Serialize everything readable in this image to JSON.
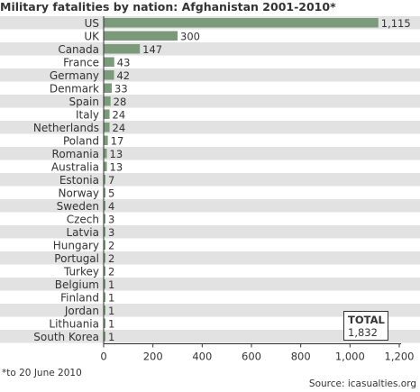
{
  "title": "Military fatalities by nation: Afghanistan 2001-2010*",
  "footnote": "*to 20 June 2010",
  "source": "Source: icasualties.org",
  "total": {
    "label": "TOTAL",
    "value": "1,832"
  },
  "colors": {
    "bar": "#7a9a7a",
    "stripe": "#e2e2e2",
    "axis": "#333333"
  },
  "chart_data": {
    "type": "bar",
    "orientation": "horizontal",
    "categories": [
      "US",
      "UK",
      "Canada",
      "France",
      "Germany",
      "Denmark",
      "Spain",
      "Italy",
      "Netherlands",
      "Poland",
      "Romania",
      "Australia",
      "Estonia",
      "Norway",
      "Sweden",
      "Czech",
      "Latvia",
      "Hungary",
      "Portugal",
      "Turkey",
      "Belgium",
      "Finland",
      "Jordan",
      "Lithuania",
      "South Korea"
    ],
    "values": [
      1115,
      300,
      147,
      43,
      42,
      33,
      28,
      24,
      24,
      17,
      13,
      13,
      7,
      5,
      4,
      3,
      3,
      2,
      2,
      2,
      1,
      1,
      1,
      1,
      1
    ],
    "value_labels": [
      "1,115",
      "300",
      "147",
      "43",
      "42",
      "33",
      "28",
      "24",
      "24",
      "17",
      "13",
      "13",
      "7",
      "5",
      "4",
      "3",
      "3",
      "2",
      "2",
      "2",
      "1",
      "1",
      "1",
      "1",
      "1"
    ],
    "xlim": [
      0,
      1200
    ],
    "xticks": [
      0,
      200,
      400,
      600,
      800,
      1000,
      1200
    ],
    "xtick_labels": [
      "0",
      "200",
      "400",
      "600",
      "800",
      "1,000",
      "1,200"
    ],
    "grid": false,
    "striped_rows": true
  }
}
